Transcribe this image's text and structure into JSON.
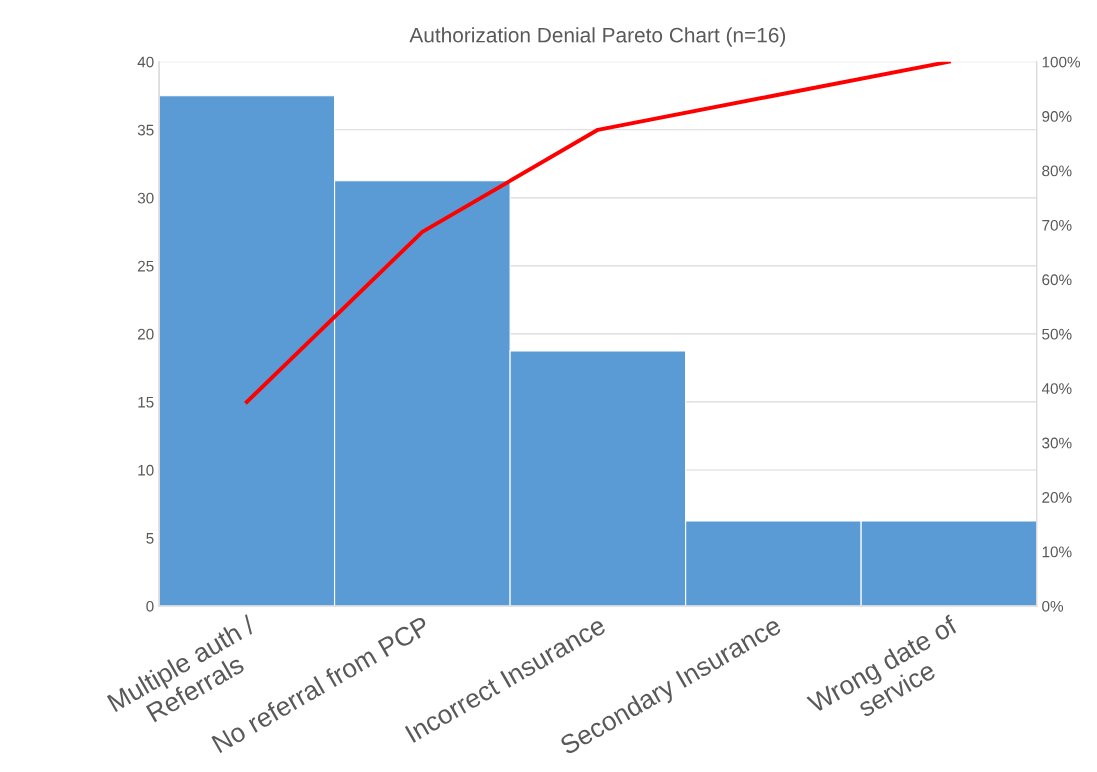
{
  "chart_data": {
    "type": "bar",
    "title": "Authorization Denial Pareto Chart (n=16)",
    "categories": [
      "Multiple auth /\nReferrals",
      "No referral from PCP",
      "Incorrect Insurance",
      "Secondary Insurance",
      "Wrong date of\nservice"
    ],
    "series": [
      {
        "color": "#5b9bd5",
        "values": [
          37.5,
          31.25,
          18.75,
          6.25,
          6.25
        ]
      },
      {
        "type": "line",
        "axis": "y2",
        "color": "#ff0000",
        "values": [
          37.5,
          68.75,
          87.5,
          93.75,
          100
        ]
      }
    ],
    "ylim": [
      0,
      40
    ],
    "yticks": [
      0,
      5,
      10,
      15,
      20,
      25,
      30,
      35,
      40
    ],
    "y2lim": [
      0,
      100
    ],
    "y2ticks": [
      {
        "value": 0,
        "label": "0%"
      },
      {
        "value": 10,
        "label": "10%"
      },
      {
        "value": 20,
        "label": "20%"
      },
      {
        "value": 30,
        "label": "30%"
      },
      {
        "value": 40,
        "label": "40%"
      },
      {
        "value": 50,
        "label": "50%"
      },
      {
        "value": 60,
        "label": "60%"
      },
      {
        "value": 70,
        "label": "70%"
      },
      {
        "value": 80,
        "label": "80%"
      },
      {
        "value": 90,
        "label": "90%"
      },
      {
        "value": 100,
        "label": "100%"
      }
    ],
    "grid": "y",
    "marker": "none",
    "line_style": "solid"
  }
}
